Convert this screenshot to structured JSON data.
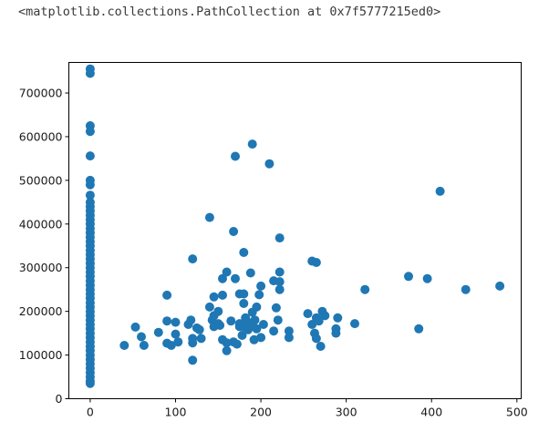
{
  "output_repr": "<matplotlib.collections.PathCollection at 0x7f5777215ed0>",
  "chart_data": {
    "type": "scatter",
    "title": "",
    "xlabel": "",
    "ylabel": "",
    "xlim": [
      -25,
      505
    ],
    "ylim": [
      0,
      770000
    ],
    "grid": false,
    "marker_color": "#1f77b4",
    "x_ticks": [
      0,
      100,
      200,
      300,
      400,
      500
    ],
    "y_ticks": [
      0,
      100000,
      200000,
      300000,
      400000,
      500000,
      600000,
      700000
    ],
    "x_tick_labels": [
      "0",
      "100",
      "200",
      "300",
      "400",
      "500"
    ],
    "y_tick_labels": [
      "0",
      "100000",
      "200000",
      "300000",
      "400000",
      "500000",
      "600000",
      "700000"
    ],
    "points": [
      [
        0,
        755000
      ],
      [
        0,
        745000
      ],
      [
        0,
        625000
      ],
      [
        0,
        612000
      ],
      [
        0,
        556000
      ],
      [
        0,
        500000
      ],
      [
        0,
        490000
      ],
      [
        0,
        466000
      ],
      [
        0,
        450000
      ],
      [
        0,
        440000
      ],
      [
        0,
        430000
      ],
      [
        0,
        420000
      ],
      [
        0,
        410000
      ],
      [
        0,
        400000
      ],
      [
        0,
        390000
      ],
      [
        0,
        380000
      ],
      [
        0,
        370000
      ],
      [
        0,
        360000
      ],
      [
        0,
        350000
      ],
      [
        0,
        340000
      ],
      [
        0,
        330000
      ],
      [
        0,
        320000
      ],
      [
        0,
        310000
      ],
      [
        0,
        300000
      ],
      [
        0,
        290000
      ],
      [
        0,
        280000
      ],
      [
        0,
        270000
      ],
      [
        0,
        260000
      ],
      [
        0,
        250000
      ],
      [
        0,
        240000
      ],
      [
        0,
        230000
      ],
      [
        0,
        220000
      ],
      [
        0,
        210000
      ],
      [
        0,
        200000
      ],
      [
        0,
        190000
      ],
      [
        0,
        180000
      ],
      [
        0,
        170000
      ],
      [
        0,
        160000
      ],
      [
        0,
        150000
      ],
      [
        0,
        140000
      ],
      [
        0,
        130000
      ],
      [
        0,
        120000
      ],
      [
        0,
        110000
      ],
      [
        0,
        100000
      ],
      [
        0,
        90000
      ],
      [
        0,
        80000
      ],
      [
        0,
        70000
      ],
      [
        0,
        60000
      ],
      [
        0,
        50000
      ],
      [
        0,
        40000
      ],
      [
        0,
        35000
      ],
      [
        40,
        122000
      ],
      [
        53,
        164000
      ],
      [
        60,
        142000
      ],
      [
        63,
        122000
      ],
      [
        80,
        152000
      ],
      [
        90,
        237000
      ],
      [
        90,
        178000
      ],
      [
        90,
        127000
      ],
      [
        95,
        122000
      ],
      [
        100,
        175000
      ],
      [
        100,
        148000
      ],
      [
        103,
        130000
      ],
      [
        115,
        170000
      ],
      [
        118,
        180000
      ],
      [
        120,
        128000
      ],
      [
        120,
        138000
      ],
      [
        120,
        320000
      ],
      [
        120,
        88000
      ],
      [
        125,
        162000
      ],
      [
        128,
        158000
      ],
      [
        130,
        138000
      ],
      [
        140,
        415000
      ],
      [
        140,
        210000
      ],
      [
        143,
        180000
      ],
      [
        145,
        233000
      ],
      [
        145,
        165000
      ],
      [
        145,
        190000
      ],
      [
        150,
        200000
      ],
      [
        150,
        172000
      ],
      [
        152,
        168000
      ],
      [
        155,
        237000
      ],
      [
        155,
        275000
      ],
      [
        155,
        135000
      ],
      [
        160,
        290000
      ],
      [
        160,
        110000
      ],
      [
        160,
        128000
      ],
      [
        165,
        178000
      ],
      [
        168,
        130000
      ],
      [
        168,
        383000
      ],
      [
        170,
        555000
      ],
      [
        170,
        275000
      ],
      [
        172,
        125000
      ],
      [
        175,
        240000
      ],
      [
        175,
        165000
      ],
      [
        175,
        172000
      ],
      [
        178,
        145000
      ],
      [
        180,
        335000
      ],
      [
        180,
        240000
      ],
      [
        180,
        218000
      ],
      [
        180,
        165000
      ],
      [
        182,
        185000
      ],
      [
        185,
        175000
      ],
      [
        185,
        158000
      ],
      [
        188,
        172000
      ],
      [
        188,
        288000
      ],
      [
        190,
        583000
      ],
      [
        190,
        198000
      ],
      [
        190,
        168000
      ],
      [
        192,
        135000
      ],
      [
        193,
        180000
      ],
      [
        195,
        210000
      ],
      [
        195,
        160000
      ],
      [
        198,
        238000
      ],
      [
        200,
        258000
      ],
      [
        200,
        140000
      ],
      [
        203,
        170000
      ],
      [
        210,
        538000
      ],
      [
        215,
        270000
      ],
      [
        215,
        155000
      ],
      [
        218,
        208000
      ],
      [
        220,
        180000
      ],
      [
        222,
        368000
      ],
      [
        222,
        290000
      ],
      [
        222,
        268000
      ],
      [
        222,
        250000
      ],
      [
        233,
        155000
      ],
      [
        233,
        140000
      ],
      [
        255,
        195000
      ],
      [
        260,
        315000
      ],
      [
        260,
        170000
      ],
      [
        263,
        150000
      ],
      [
        265,
        312000
      ],
      [
        265,
        185000
      ],
      [
        265,
        138000
      ],
      [
        268,
        178000
      ],
      [
        270,
        120000
      ],
      [
        272,
        200000
      ],
      [
        275,
        190000
      ],
      [
        288,
        160000
      ],
      [
        288,
        150000
      ],
      [
        290,
        185000
      ],
      [
        310,
        172000
      ],
      [
        322,
        250000
      ],
      [
        373,
        280000
      ],
      [
        385,
        160000
      ],
      [
        395,
        275000
      ],
      [
        410,
        475000
      ],
      [
        440,
        250000
      ],
      [
        480,
        258000
      ]
    ]
  }
}
